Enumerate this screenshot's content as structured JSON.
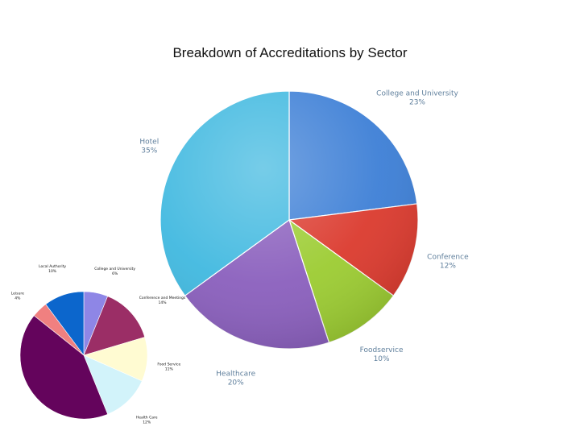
{
  "slide": {
    "title": "Breakdown of Accreditations by Sector"
  },
  "chart_data": [
    {
      "type": "pie",
      "title": "",
      "unit": "%",
      "categories": [
        "College and University",
        "Conference",
        "Foodservice",
        "Healthcare",
        "Hotel"
      ],
      "values": [
        23,
        12,
        10,
        20,
        35
      ],
      "labels": [
        "23%",
        "12%",
        "10%",
        "20%",
        "35%"
      ],
      "colors": [
        "#3d7fd6",
        "#db3a2e",
        "#9ccc32",
        "#8a5fbd",
        "#41b9e0"
      ],
      "start_angle_deg": 0,
      "direction": "clockwise",
      "style": "3d-gradient"
    },
    {
      "type": "pie",
      "title": "",
      "unit": "%",
      "categories": [
        "College and University",
        "Conference and Meetings",
        "Food Service",
        "Health Care",
        "Hotel",
        "Leisure",
        "Local Authority"
      ],
      "values": [
        6,
        14,
        11,
        12,
        41,
        4,
        10
      ],
      "labels": [
        "6%",
        "14%",
        "11%",
        "12%",
        "41%",
        "4%",
        "10%"
      ],
      "colors": [
        "#8e86e6",
        "#9b2e66",
        "#fffbd2",
        "#d2f3fa",
        "#64045c",
        "#f08080",
        "#0c66cc"
      ],
      "start_angle_deg": 0,
      "direction": "clockwise",
      "style": "flat"
    }
  ]
}
